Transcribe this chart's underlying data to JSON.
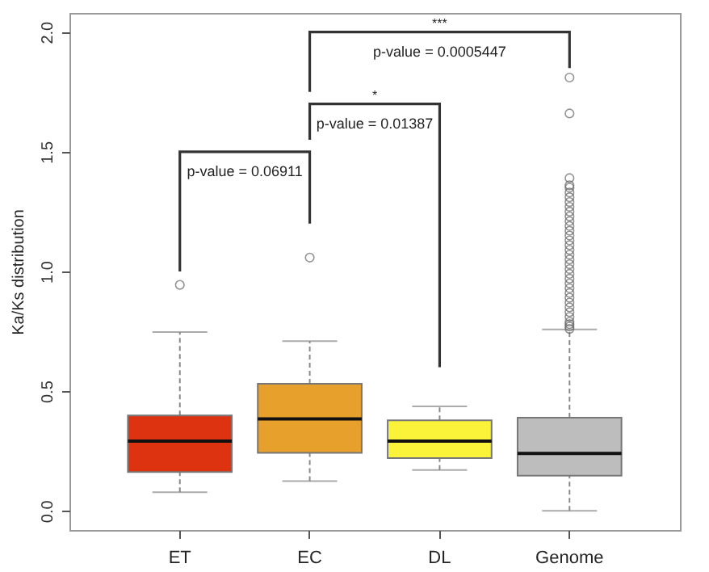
{
  "chart_data": {
    "type": "box",
    "ylabel": "Ka/Ks distribution",
    "categories": [
      "ET",
      "EC",
      "DL",
      "Genome"
    ],
    "colors": [
      "#dd3311",
      "#e8a02c",
      "#fbf33a",
      "#bdbdbd"
    ],
    "boxes": [
      {
        "low": 0.078,
        "q1": 0.162,
        "median": 0.291,
        "q3": 0.398,
        "high": 0.747,
        "outliers": [
          0.944
        ]
      },
      {
        "low": 0.124,
        "q1": 0.242,
        "median": 0.384,
        "q3": 0.531,
        "high": 0.709,
        "outliers": [
          1.058
        ]
      },
      {
        "low": 0.171,
        "q1": 0.22,
        "median": 0.291,
        "q3": 0.378,
        "high": 0.436
      },
      {
        "low": 0.0,
        "q1": 0.147,
        "median": 0.24,
        "q3": 0.389,
        "high": 0.758,
        "outliers": [
          1.81,
          1.66,
          1.39,
          1.36,
          1.35,
          1.33,
          1.31,
          1.29,
          1.27,
          1.25,
          1.23,
          1.21,
          1.19,
          1.17,
          1.15,
          1.13,
          1.11,
          1.09,
          1.07,
          1.05,
          1.03,
          1.01,
          0.99,
          0.97,
          0.95,
          0.93,
          0.91,
          0.89,
          0.87,
          0.85,
          0.83,
          0.81,
          0.79,
          0.78,
          0.77,
          0.76
        ]
      }
    ],
    "ylim": [
      -0.08,
      2.08
    ],
    "yticks": [
      {
        "value": 0,
        "label": "0.0"
      },
      {
        "value": 0.5,
        "label": "0.5"
      },
      {
        "value": 1,
        "label": "1.0"
      },
      {
        "value": 1.5,
        "label": "1.5"
      },
      {
        "value": 2,
        "label": "2.0"
      }
    ],
    "grid": false,
    "annotations": [
      "p-value = 0.06911",
      "p-value = 0.01387",
      "*",
      "p-value = 0.0005447",
      "***"
    ]
  }
}
